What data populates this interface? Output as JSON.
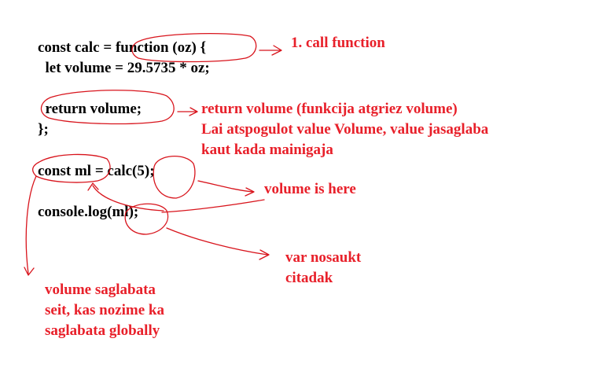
{
  "code": {
    "line1": "const calc = function (oz) {",
    "line2": "  let volume = 29.5735 * oz;",
    "line3": "  return volume;",
    "line4": "};",
    "line5": "const ml = calc(5);",
    "line6": "console.log(ml);"
  },
  "annotations": {
    "call_function": "1. call function",
    "return_line1": "return volume (funkcija atgriez volume)",
    "return_line2": "Lai atspogulot value Volume, value jasaglaba",
    "return_line3": "kaut kada mainigaja",
    "volume_here": "volume is here",
    "var_line1": "var nosaukt",
    "var_line2": "citadak",
    "saved_line1": "volume saglabata",
    "saved_line2": "seit, kas nozime ka",
    "saved_line3": "saglabata globally"
  },
  "colors": {
    "code_text": "#000000",
    "annotation": "#e8202a",
    "background": "#ffffff"
  }
}
